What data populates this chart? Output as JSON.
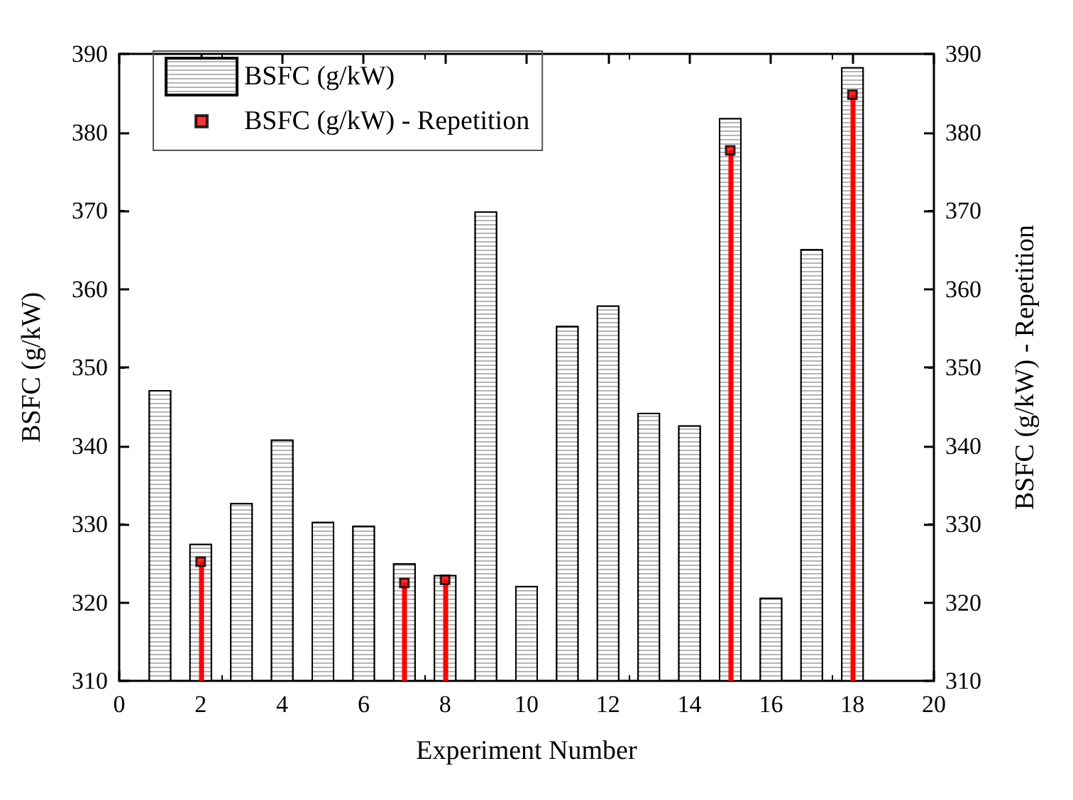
{
  "chart_data": {
    "type": "bar",
    "xlabel": "Experiment Number",
    "ylabel": "BSFC (g/kW)",
    "y2label": "BSFC (g/kW) - Repetition",
    "x": [
      1,
      2,
      3,
      4,
      5,
      6,
      7,
      8,
      9,
      10,
      11,
      12,
      13,
      14,
      15,
      16,
      17,
      18
    ],
    "series": [
      {
        "name": "BSFC (g/kW)",
        "color": "#b4b4b4",
        "values": [
          347.1,
          327.5,
          332.7,
          340.8,
          330.3,
          329.8,
          325.0,
          323.5,
          369.9,
          322.1,
          355.3,
          357.9,
          344.2,
          342.6,
          381.8,
          320.6,
          365.1,
          388.3
        ]
      },
      {
        "name": "BSFC (g/kW) - Repetition",
        "type": "lollipop",
        "color": "#ff0000",
        "marker": "square",
        "x": [
          2,
          7,
          8,
          15,
          18
        ],
        "values": [
          325.2,
          322.5,
          322.9,
          377.7,
          384.8
        ]
      }
    ],
    "xlim": [
      0,
      20
    ],
    "xticks": [
      0,
      2,
      4,
      6,
      8,
      10,
      12,
      14,
      16,
      18,
      20
    ],
    "ylim": [
      310,
      390
    ],
    "yticks": [
      310,
      320,
      330,
      340,
      350,
      360,
      370,
      380,
      390
    ],
    "y2lim": [
      310,
      390
    ],
    "y2ticks": [
      310,
      320,
      330,
      340,
      350,
      360,
      370,
      380,
      390
    ],
    "grid": false,
    "legend": "top left"
  }
}
